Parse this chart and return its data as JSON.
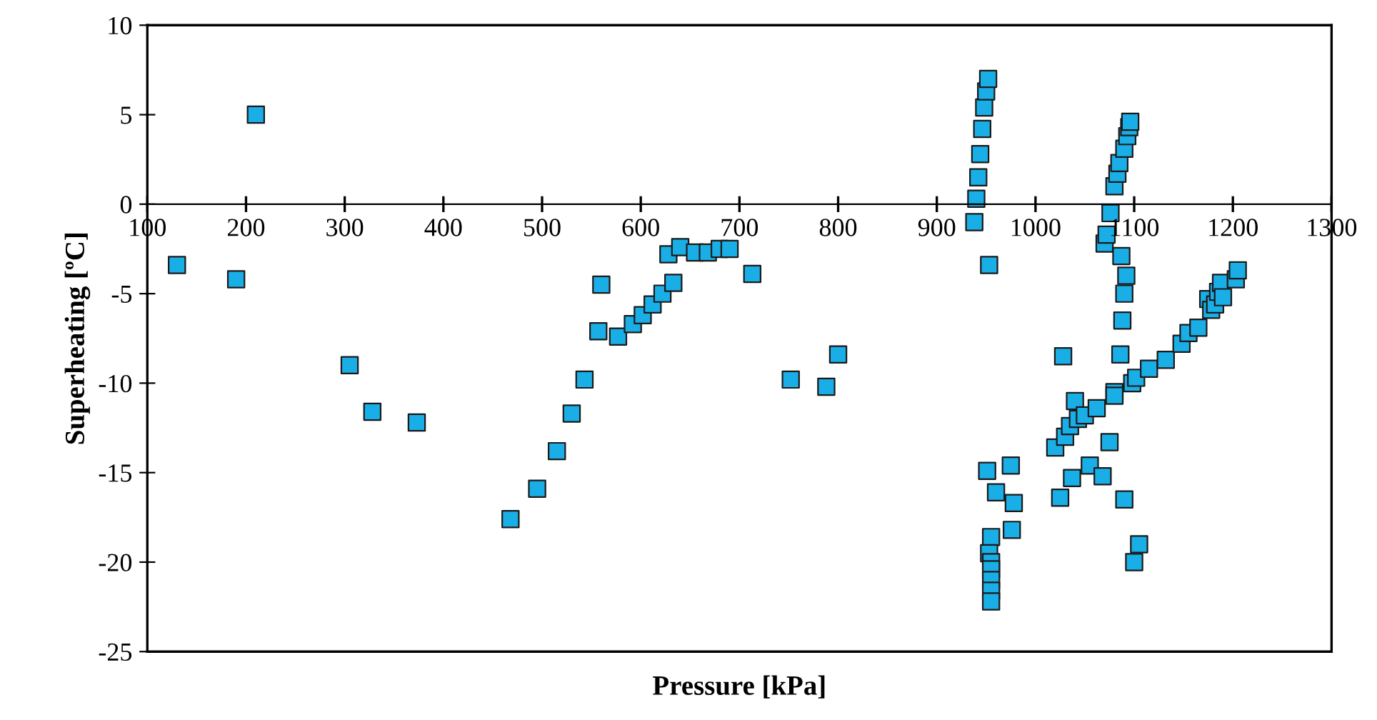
{
  "chart_data": {
    "type": "scatter",
    "xlabel": "Pressure [kPa]",
    "ylabel": "Superheating [ºC]",
    "xlim": [
      100,
      1300
    ],
    "xticks": [
      100,
      200,
      300,
      400,
      500,
      600,
      700,
      800,
      900,
      1000,
      1100,
      1200,
      1300
    ],
    "ylim": [
      -25,
      10
    ],
    "yticks": [
      -25,
      -20,
      -15,
      -10,
      -5,
      0,
      5,
      10
    ],
    "grid": false,
    "legend": false,
    "marker": "square",
    "series": [
      {
        "color": "#1aaee6",
        "x": [
          130,
          190,
          210,
          305,
          328,
          373,
          468,
          495,
          515,
          530,
          543,
          557,
          560,
          577,
          592,
          602,
          612,
          622,
          633,
          628,
          640,
          655,
          668,
          680,
          690,
          713,
          752,
          788,
          800,
          938,
          940,
          942,
          944,
          946,
          948,
          950,
          952,
          953,
          951,
          955,
          953,
          955,
          955,
          955,
          955,
          955,
          960,
          975,
          976,
          978,
          1070,
          1072,
          1076,
          1080,
          1083,
          1085,
          1090,
          1093,
          1095,
          1096,
          1087,
          1092,
          1090,
          1088,
          1086,
          1080,
          1080,
          1090,
          1100,
          1105,
          1020,
          1025,
          1028,
          1030,
          1035,
          1040,
          1043,
          1037,
          1050,
          1055,
          1062,
          1068,
          1075,
          1098,
          1102,
          1115,
          1132,
          1148,
          1155,
          1165,
          1175,
          1178,
          1182,
          1185,
          1188,
          1190,
          1203,
          1205
        ],
        "values": [
          -3.4,
          -4.2,
          5.0,
          -9.0,
          -11.6,
          -12.2,
          -17.6,
          -15.9,
          -13.8,
          -11.7,
          -9.8,
          -7.1,
          -4.5,
          -7.4,
          -6.7,
          -6.2,
          -5.6,
          -5.0,
          -4.4,
          -2.8,
          -2.4,
          -2.7,
          -2.7,
          -2.5,
          -2.5,
          -3.9,
          -9.8,
          -10.2,
          -8.4,
          -1.0,
          0.3,
          1.5,
          2.8,
          4.2,
          5.4,
          6.3,
          7.0,
          -3.4,
          -14.9,
          -18.6,
          -19.5,
          -20.0,
          -20.4,
          -21.0,
          -21.6,
          -22.2,
          -16.1,
          -14.6,
          -18.2,
          -16.7,
          -2.2,
          -1.7,
          -0.5,
          1.0,
          1.7,
          2.3,
          3.1,
          3.8,
          4.3,
          4.6,
          -2.9,
          -4.0,
          -5.0,
          -6.5,
          -8.4,
          -10.5,
          -10.7,
          -16.5,
          -20.0,
          -19.0,
          -13.6,
          -16.4,
          -8.5,
          -13.0,
          -12.4,
          -11.0,
          -12.0,
          -15.3,
          -11.8,
          -14.6,
          -11.4,
          -15.2,
          -13.3,
          -10.0,
          -9.7,
          -9.2,
          -8.7,
          -7.8,
          -7.2,
          -6.9,
          -5.3,
          -5.9,
          -5.6,
          -4.9,
          -4.4,
          -5.2,
          -4.2,
          -3.7
        ]
      }
    ]
  }
}
